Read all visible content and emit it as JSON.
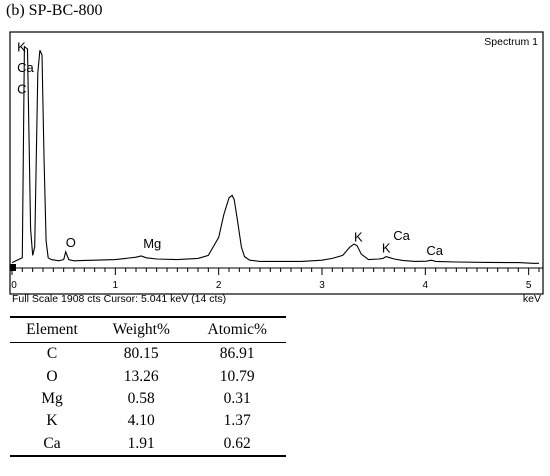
{
  "figure": {
    "title": "(b) SP-BC-800"
  },
  "chart_data": {
    "type": "line",
    "title": "(b) SP-BC-800",
    "spectrum_label": "Spectrum 1",
    "xlabel": "keV",
    "xlim": [
      0,
      5.1
    ],
    "ylim": [
      0,
      1908
    ],
    "x_ticks": [
      "0",
      "1",
      "2",
      "3",
      "4",
      "5"
    ],
    "status_left": "Full Scale 1908 cts  Cursor: 5.041 keV (14 cts)",
    "status_right": "keV",
    "series": [
      {
        "x": [
          0.0,
          0.1,
          0.12,
          0.15,
          0.18,
          0.2,
          0.22,
          0.25,
          0.27,
          0.29,
          0.31,
          0.33,
          0.35,
          0.38,
          0.42,
          0.45,
          0.5,
          0.52,
          0.55,
          0.6,
          0.7,
          0.8,
          1.0,
          1.1,
          1.2,
          1.25,
          1.3,
          1.4,
          1.6,
          1.8,
          1.9,
          2.0,
          2.05,
          2.1,
          2.13,
          2.15,
          2.18,
          2.22,
          2.25,
          2.3,
          2.4,
          2.5,
          2.8,
          3.0,
          3.1,
          3.2,
          3.27,
          3.31,
          3.34,
          3.38,
          3.45,
          3.55,
          3.59,
          3.62,
          3.66,
          3.7,
          3.78,
          3.9,
          4.01,
          4.06,
          4.1,
          4.3,
          4.6,
          4.9,
          5.04,
          5.1
        ],
        "values": [
          20,
          60,
          1820,
          1800,
          300,
          80,
          150,
          1600,
          1790,
          1750,
          900,
          200,
          60,
          45,
          40,
          35,
          45,
          110,
          45,
          35,
          38,
          40,
          45,
          55,
          65,
          75,
          60,
          50,
          45,
          55,
          80,
          230,
          420,
          560,
          580,
          545,
          380,
          150,
          70,
          40,
          30,
          30,
          30,
          40,
          55,
          80,
          150,
          175,
          160,
          90,
          45,
          50,
          55,
          70,
          60,
          50,
          38,
          30,
          32,
          40,
          30,
          25,
          22,
          20,
          14,
          14
        ]
      }
    ],
    "peak_labels": [
      {
        "text": "K",
        "x": 0.05,
        "y": 1780
      },
      {
        "text": "Ca",
        "x": 0.05,
        "y": 1610
      },
      {
        "text": "C",
        "x": 0.05,
        "y": 1430
      },
      {
        "text": "O",
        "x": 0.52,
        "y": 150
      },
      {
        "text": "Mg",
        "x": 1.27,
        "y": 140
      },
      {
        "text": "K",
        "x": 3.31,
        "y": 195
      },
      {
        "text": "Ca",
        "x": 3.69,
        "y": 210
      },
      {
        "text": "K",
        "x": 3.58,
        "y": 105
      },
      {
        "text": "Ca",
        "x": 4.01,
        "y": 85
      }
    ]
  },
  "table": {
    "headers": [
      "Element",
      "Weight%",
      "Atomic%"
    ],
    "rows": [
      [
        "C",
        "80.15",
        "86.91"
      ],
      [
        "O",
        "13.26",
        "10.79"
      ],
      [
        "Mg",
        "0.58",
        "0.31"
      ],
      [
        "K",
        "4.10",
        "1.37"
      ],
      [
        "Ca",
        "1.91",
        "0.62"
      ]
    ]
  }
}
